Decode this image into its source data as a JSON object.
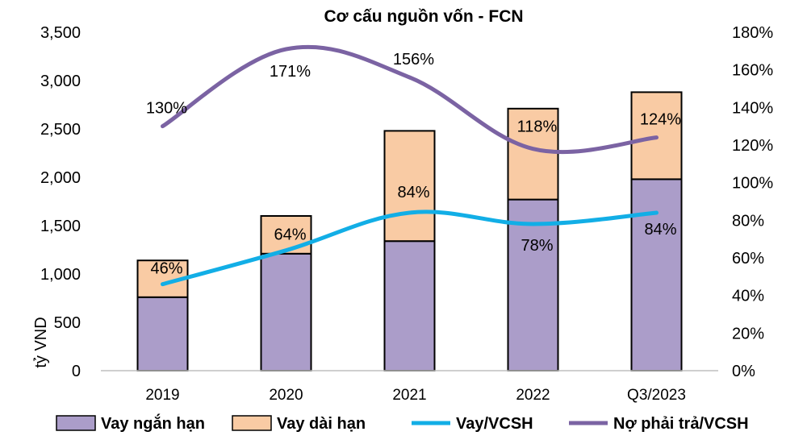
{
  "chart_data": {
    "type": "bar",
    "title": "Cơ cấu nguồn vốn - FCN",
    "ylabel": "tỷ VND",
    "categories": [
      "2019",
      "2020",
      "2021",
      "2022",
      "Q3/2023"
    ],
    "ylim": [
      0,
      3500
    ],
    "yticks": [
      0,
      500,
      1000,
      1500,
      2000,
      2500,
      3000,
      3500
    ],
    "y2lim": [
      0,
      180
    ],
    "y2ticks": [
      0,
      20,
      40,
      60,
      80,
      100,
      120,
      140,
      160,
      180
    ],
    "stacked": true,
    "series": [
      {
        "name": "Vay ngắn hạn",
        "kind": "bar",
        "axis": "left",
        "color": "#ab9dc9",
        "values": [
          760,
          1210,
          1340,
          1770,
          1980
        ]
      },
      {
        "name": "Vay dài hạn",
        "kind": "bar",
        "axis": "left",
        "color": "#f9cba4",
        "values": [
          380,
          390,
          1140,
          940,
          900
        ]
      },
      {
        "name": "Vay/VCSH",
        "kind": "line",
        "axis": "right",
        "color": "#12aee6",
        "values": [
          46,
          64,
          84,
          78,
          84
        ],
        "labels": [
          "46%",
          "64%",
          "84%",
          "78%",
          "84%"
        ]
      },
      {
        "name": "Nợ phải trả/VCSH",
        "kind": "line",
        "axis": "right",
        "color": "#7b63a3",
        "values": [
          130,
          171,
          156,
          118,
          124
        ],
        "labels": [
          "130%",
          "171%",
          "156%",
          "118%",
          "124%"
        ]
      }
    ],
    "legend_position": "bottom",
    "grid": false
  }
}
